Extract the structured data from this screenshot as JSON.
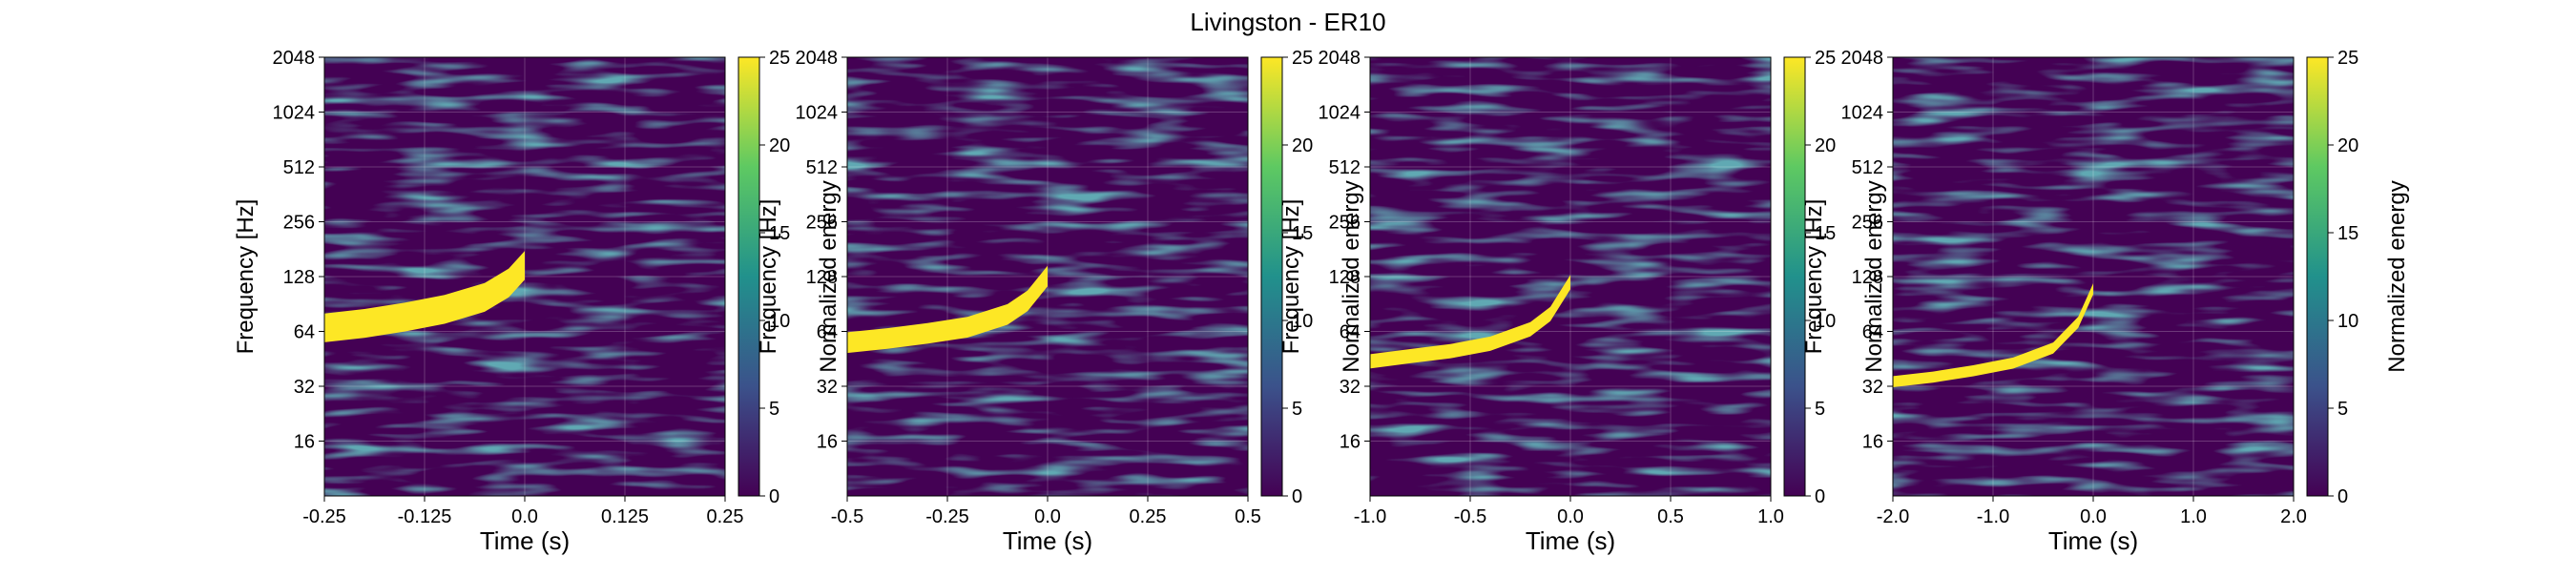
{
  "chart_data": {
    "type": "heatmap",
    "title": "Livingston - ER10",
    "colormap": [
      "#440154",
      "#3b528b",
      "#21918c",
      "#5ec962",
      "#fde725"
    ],
    "background_color": "#440154",
    "track_color": "#fde725",
    "panels": [
      {
        "xlabel": "Time (s)",
        "ylabel": "Frequency [Hz]",
        "xlim": [
          -0.25,
          0.25
        ],
        "xticks": [
          -0.25,
          -0.125,
          0.0,
          0.125,
          0.25
        ],
        "xtick_labels": [
          "-0.25",
          "-0.125",
          "0.0",
          "0.125",
          "0.25"
        ],
        "ylim": [
          8,
          2048
        ],
        "yscale": "log2",
        "yticks": [
          16,
          32,
          64,
          128,
          256,
          512,
          1024,
          2048
        ],
        "ytick_labels": [
          "16",
          "32",
          "64",
          "128",
          "256",
          "512",
          "1024",
          "2048"
        ],
        "grid": true,
        "colorbar": {
          "label": "Normalized energy",
          "range": [
            0,
            25
          ],
          "ticks": [
            0,
            5,
            10,
            15,
            20,
            25
          ],
          "tick_labels": [
            "0",
            "5",
            "10",
            "15",
            "20",
            "25"
          ]
        },
        "track": {
          "t": [
            -0.25,
            -0.2,
            -0.15,
            -0.1,
            -0.05,
            -0.02,
            0.0
          ],
          "f": [
            68,
            72,
            78,
            86,
            100,
            120,
            150
          ],
          "width_hz_fraction": 0.18
        }
      },
      {
        "xlabel": "Time (s)",
        "ylabel": "Frequency [Hz]",
        "xlim": [
          -0.5,
          0.5
        ],
        "xticks": [
          -0.5,
          -0.25,
          0.0,
          0.25,
          0.5
        ],
        "xtick_labels": [
          "-0.5",
          "-0.25",
          "0.0",
          "0.25",
          "0.5"
        ],
        "ylim": [
          8,
          2048
        ],
        "yscale": "log2",
        "yticks": [
          16,
          32,
          64,
          128,
          256,
          512,
          1024,
          2048
        ],
        "ytick_labels": [
          "16",
          "32",
          "64",
          "128",
          "256",
          "512",
          "1024",
          "2048"
        ],
        "grid": true,
        "colorbar": {
          "label": "Normalized energy",
          "range": [
            0,
            25
          ],
          "ticks": [
            0,
            5,
            10,
            15,
            20,
            25
          ],
          "tick_labels": [
            "0",
            "5",
            "10",
            "15",
            "20",
            "25"
          ]
        },
        "track": {
          "t": [
            -0.5,
            -0.4,
            -0.3,
            -0.2,
            -0.1,
            -0.05,
            0.0
          ],
          "f": [
            56,
            59,
            63,
            68,
            80,
            95,
            130
          ],
          "width_hz_fraction": 0.13
        }
      },
      {
        "xlabel": "Time (s)",
        "ylabel": "Frequency [Hz]",
        "xlim": [
          -1.0,
          1.0
        ],
        "xticks": [
          -1.0,
          -0.5,
          0.0,
          0.5,
          1.0
        ],
        "xtick_labels": [
          "-1.0",
          "-0.5",
          "0.0",
          "0.5",
          "1.0"
        ],
        "ylim": [
          8,
          2048
        ],
        "yscale": "log2",
        "yticks": [
          16,
          32,
          64,
          128,
          256,
          512,
          1024,
          2048
        ],
        "ytick_labels": [
          "16",
          "32",
          "64",
          "128",
          "256",
          "512",
          "1024",
          "2048"
        ],
        "grid": true,
        "colorbar": {
          "label": "Normalized energy",
          "range": [
            0,
            25
          ],
          "ticks": [
            0,
            5,
            10,
            15,
            20,
            25
          ],
          "tick_labels": [
            "0",
            "5",
            "10",
            "15",
            "20",
            "25"
          ]
        },
        "track": {
          "t": [
            -1.0,
            -0.8,
            -0.6,
            -0.4,
            -0.2,
            -0.1,
            0.0
          ],
          "f": [
            44,
            47,
            50,
            55,
            66,
            80,
            120
          ],
          "width_hz_fraction": 0.09
        }
      },
      {
        "xlabel": "Time (s)",
        "ylabel": "Frequency [Hz]",
        "xlim": [
          -2.0,
          2.0
        ],
        "xticks": [
          -2.0,
          -1.0,
          0.0,
          1.0,
          2.0
        ],
        "xtick_labels": [
          "-2.0",
          "-1.0",
          "0.0",
          "1.0",
          "2.0"
        ],
        "ylim": [
          8,
          2048
        ],
        "yscale": "log2",
        "yticks": [
          16,
          32,
          64,
          128,
          256,
          512,
          1024,
          2048
        ],
        "ytick_labels": [
          "16",
          "32",
          "64",
          "128",
          "256",
          "512",
          "1024",
          "2048"
        ],
        "grid": true,
        "colorbar": {
          "label": "Normalized energy",
          "range": [
            0,
            25
          ],
          "ticks": [
            0,
            5,
            10,
            15,
            20,
            25
          ],
          "tick_labels": [
            "0",
            "5",
            "10",
            "15",
            "20",
            "25"
          ]
        },
        "track": {
          "t": [
            -2.0,
            -1.6,
            -1.2,
            -0.8,
            -0.4,
            -0.15,
            0.0
          ],
          "f": [
            34,
            36,
            39,
            43,
            52,
            72,
            110
          ],
          "width_hz_fraction": 0.07
        }
      }
    ]
  }
}
